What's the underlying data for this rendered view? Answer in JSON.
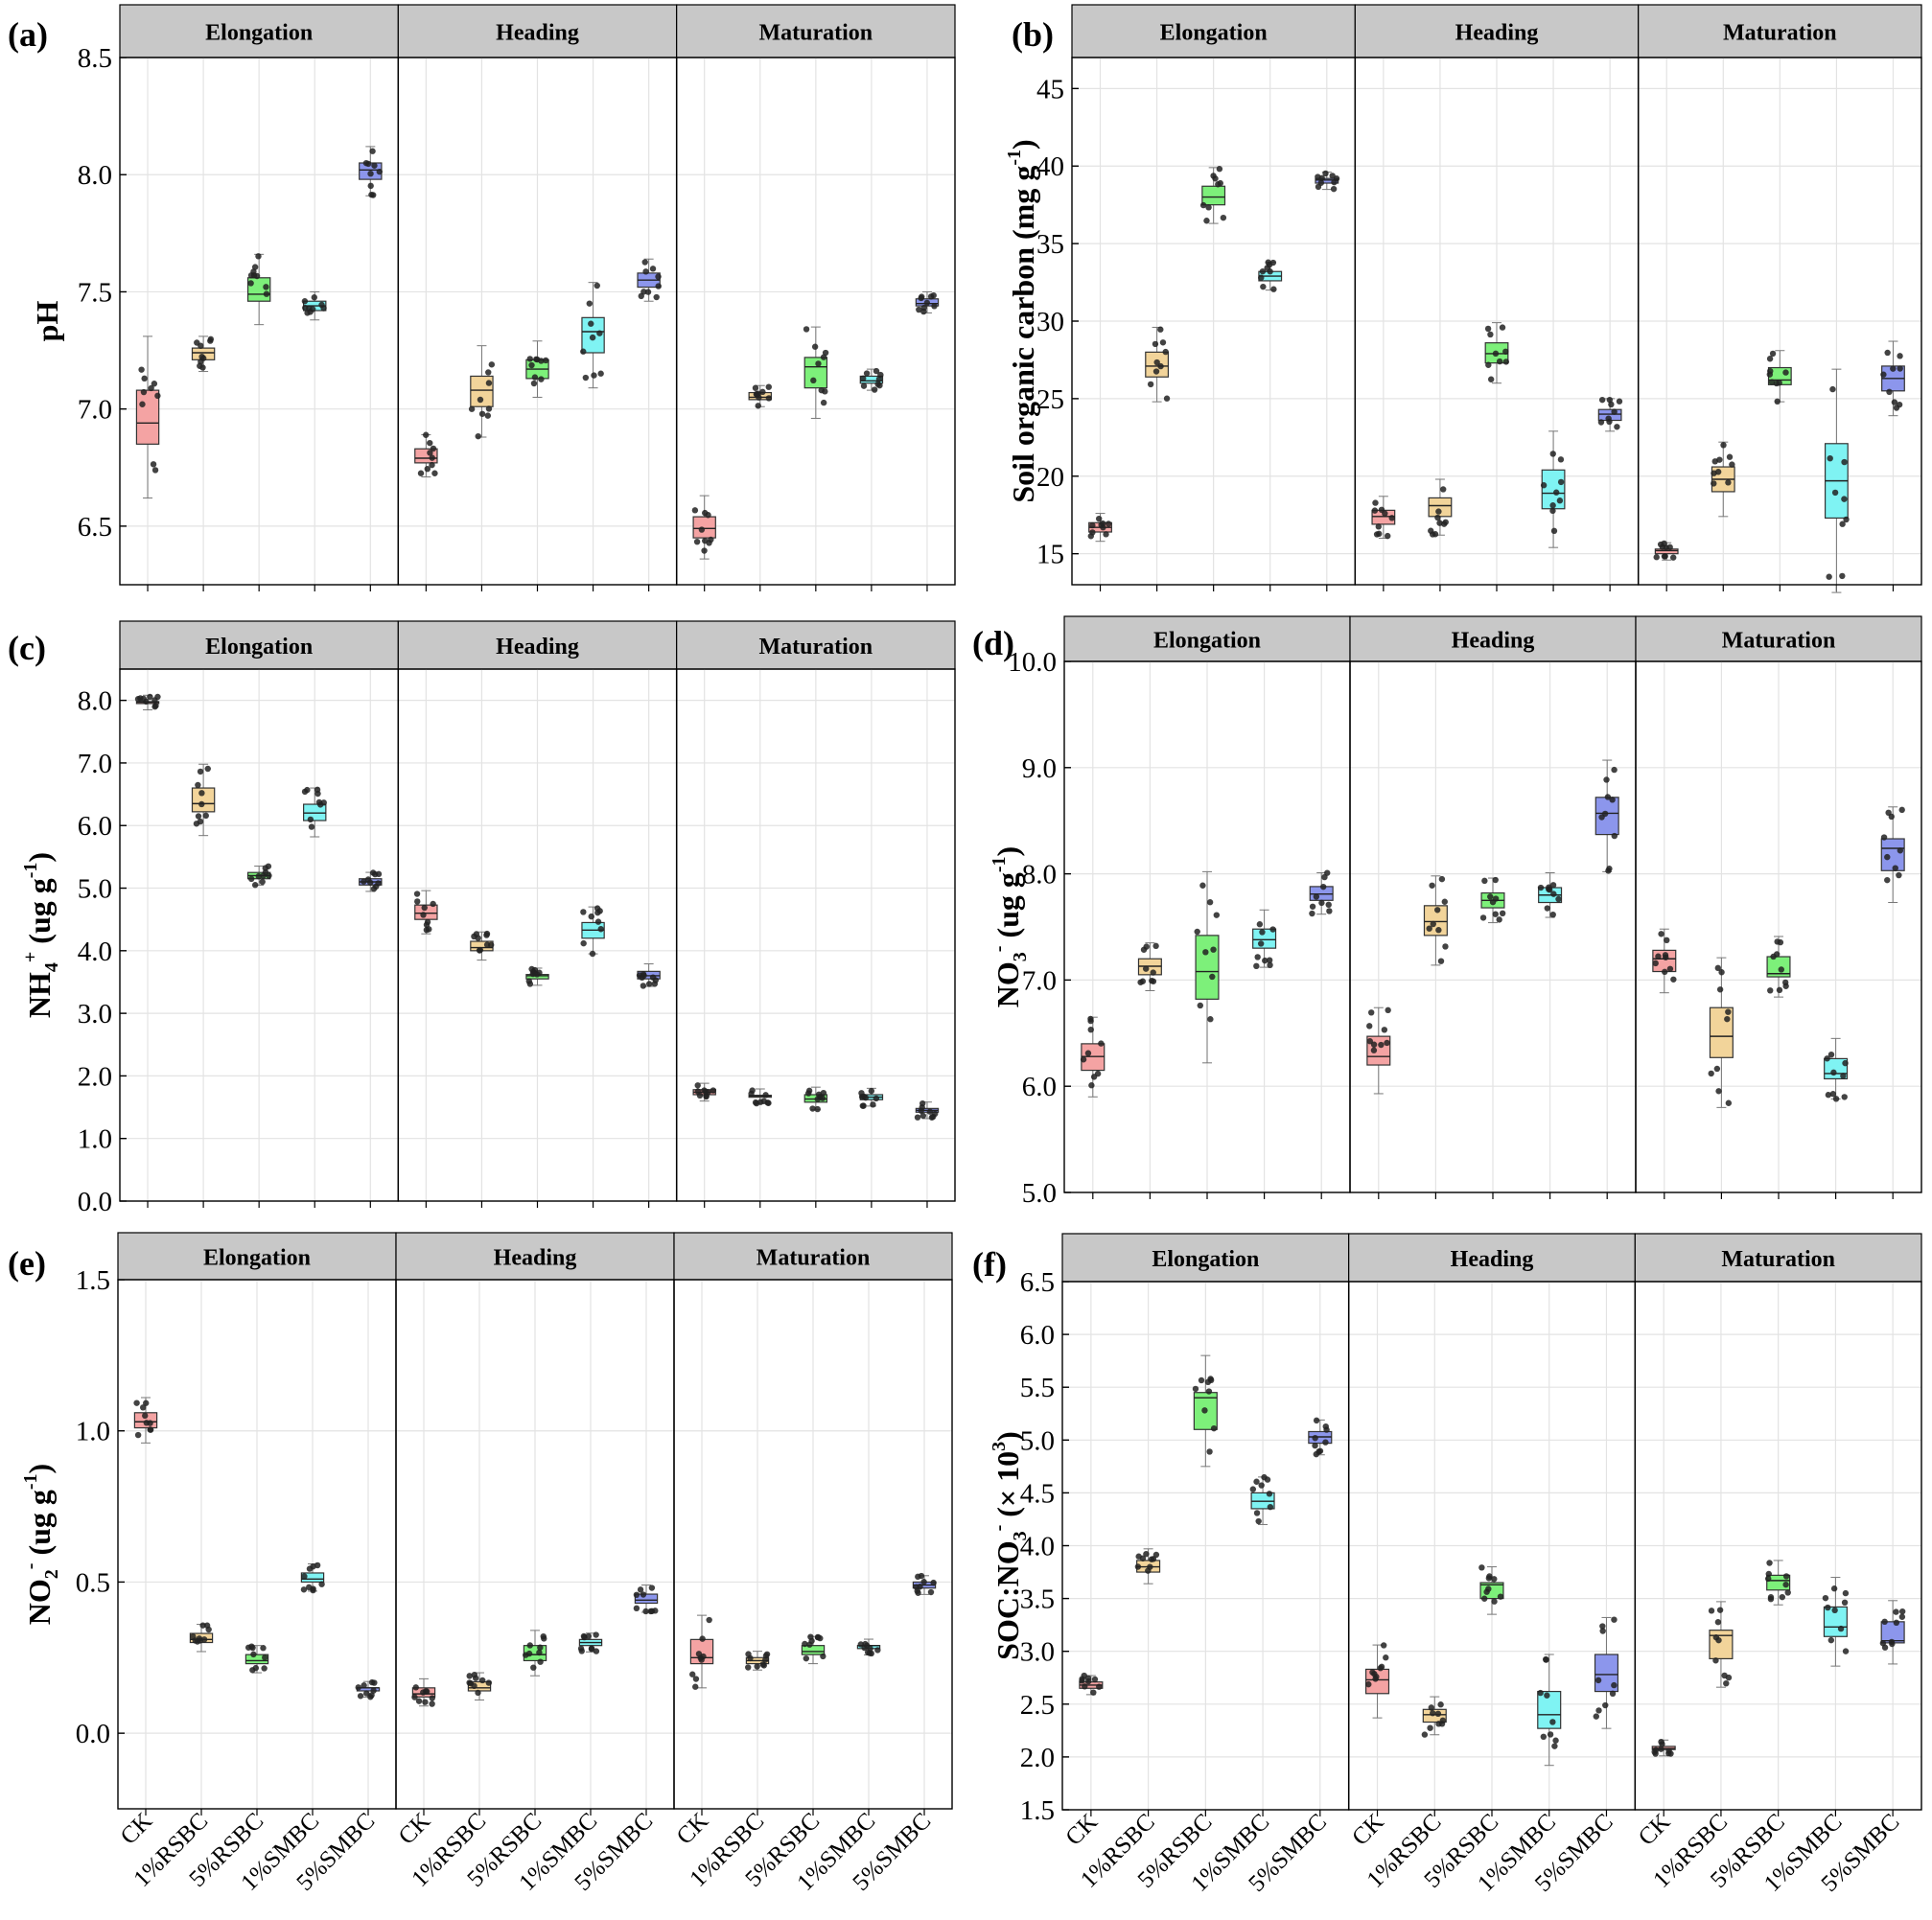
{
  "figure": {
    "treatments": [
      "CK",
      "1%RSBC",
      "5%RSBC",
      "1%SMBC",
      "5%SMBC"
    ],
    "stages": [
      "Elongation",
      "Heading",
      "Maturation"
    ],
    "colors": {
      "CK": "#f4a3a3",
      "1%RSBC": "#f2d49a",
      "5%RSBC": "#7df07a",
      "1%SMBC": "#7ff3f3",
      "5%SMBC": "#8c96ec",
      "header_bg": "#c8c8c8",
      "grid": "#e3e3e3"
    }
  },
  "chart_data": [
    {
      "id": "a",
      "type": "box",
      "panel_label": "(a)",
      "ylabel": {
        "main": "pH",
        "sup": "",
        "tail": ""
      },
      "ylim": [
        6.25,
        8.5
      ],
      "yticks": [
        "6.5",
        "7.0",
        "7.5",
        "8.0",
        "8.5"
      ],
      "series": {
        "Elongation": [
          [
            6.85,
            6.94,
            7.08
          ],
          [
            7.21,
            7.24,
            7.26
          ],
          [
            7.46,
            7.49,
            7.56
          ],
          [
            7.42,
            7.44,
            7.46
          ],
          [
            7.98,
            8.02,
            8.05
          ]
        ],
        "Heading": [
          [
            6.77,
            6.79,
            6.83
          ],
          [
            7.01,
            7.08,
            7.14
          ],
          [
            7.13,
            7.17,
            7.21
          ],
          [
            7.24,
            7.33,
            7.39
          ],
          [
            7.52,
            7.55,
            7.58
          ]
        ],
        "Maturation": [
          [
            6.45,
            6.49,
            6.54
          ],
          [
            7.04,
            7.05,
            7.07
          ],
          [
            7.09,
            7.18,
            7.22
          ],
          [
            7.11,
            7.12,
            7.14
          ],
          [
            7.44,
            7.45,
            7.47
          ]
        ]
      }
    },
    {
      "id": "b",
      "type": "box",
      "panel_label": "(b)",
      "ylabel": {
        "main": "Soil organic carbon (mg g",
        "sup": "-1",
        "tail": ")"
      },
      "ylim": [
        13,
        47
      ],
      "yticks": [
        "15",
        "20",
        "25",
        "30",
        "35",
        "40",
        "45"
      ],
      "series": {
        "Elongation": [
          [
            16.4,
            16.7,
            17.0
          ],
          [
            26.4,
            27.1,
            28.0
          ],
          [
            37.5,
            38.0,
            38.7
          ],
          [
            32.6,
            32.9,
            33.2
          ],
          [
            38.9,
            39.1,
            39.2
          ]
        ],
        "Heading": [
          [
            16.9,
            17.4,
            17.8
          ],
          [
            17.4,
            18.1,
            18.6
          ],
          [
            27.3,
            27.9,
            28.6
          ],
          [
            17.9,
            18.9,
            20.4
          ],
          [
            23.6,
            24.0,
            24.3
          ]
        ],
        "Maturation": [
          [
            15.0,
            15.2,
            15.3
          ],
          [
            19.0,
            19.8,
            20.6
          ],
          [
            25.9,
            26.2,
            27.0
          ],
          [
            17.3,
            19.7,
            22.1
          ],
          [
            25.5,
            26.3,
            27.1
          ]
        ]
      }
    },
    {
      "id": "c",
      "type": "box",
      "panel_label": "(c)",
      "ylabel": {
        "main": "NH",
        "sub": "4",
        "sup": "+",
        "tail": " (ug g",
        "sup2": "-1",
        "tail2": ")"
      },
      "ylim": [
        0,
        8.5
      ],
      "yticks": [
        "0.0",
        "1.0",
        "2.0",
        "3.0",
        "4.0",
        "5.0",
        "6.0",
        "7.0",
        "8.0"
      ],
      "series": {
        "Elongation": [
          [
            7.95,
            7.97,
            7.98
          ],
          [
            6.22,
            6.35,
            6.6
          ],
          [
            5.15,
            5.2,
            5.25
          ],
          [
            6.08,
            6.2,
            6.34
          ],
          [
            5.05,
            5.1,
            5.15
          ]
        ],
        "Heading": [
          [
            4.5,
            4.6,
            4.73
          ],
          [
            4.0,
            4.05,
            4.15
          ],
          [
            3.55,
            3.6,
            3.62
          ],
          [
            4.2,
            4.33,
            4.45
          ],
          [
            3.55,
            3.6,
            3.67
          ]
        ],
        "Maturation": [
          [
            1.7,
            1.74,
            1.78
          ],
          [
            1.66,
            1.68,
            1.69
          ],
          [
            1.58,
            1.63,
            1.7
          ],
          [
            1.62,
            1.66,
            1.7
          ],
          [
            1.42,
            1.45,
            1.48
          ]
        ]
      }
    },
    {
      "id": "d",
      "type": "box",
      "panel_label": "(d)",
      "ylabel": {
        "main": "NO",
        "sub": "3",
        "sup": "-",
        "tail": " (ug g",
        "sup2": "-1",
        "tail2": ")"
      },
      "ylim": [
        5.0,
        10.0
      ],
      "yticks": [
        "5.0",
        "6.0",
        "7.0",
        "8.0",
        "9.0",
        "10.0"
      ],
      "series": {
        "Elongation": [
          [
            6.15,
            6.28,
            6.4
          ],
          [
            7.05,
            7.13,
            7.2
          ],
          [
            6.82,
            7.08,
            7.42
          ],
          [
            7.3,
            7.38,
            7.48
          ],
          [
            7.75,
            7.81,
            7.88
          ]
        ],
        "Heading": [
          [
            6.2,
            6.28,
            6.47
          ],
          [
            7.42,
            7.55,
            7.7
          ],
          [
            7.68,
            7.75,
            7.82
          ],
          [
            7.73,
            7.8,
            7.87
          ],
          [
            8.37,
            8.57,
            8.72
          ]
        ],
        "Maturation": [
          [
            7.08,
            7.2,
            7.28
          ],
          [
            6.27,
            6.47,
            6.74
          ],
          [
            7.03,
            7.06,
            7.22
          ],
          [
            6.07,
            6.12,
            6.26
          ],
          [
            8.03,
            8.24,
            8.33
          ]
        ]
      }
    },
    {
      "id": "e",
      "type": "box",
      "panel_label": "(e)",
      "ylabel": {
        "main": "NO",
        "sub": "2",
        "sup": "-",
        "tail": " (ug g",
        "sup2": "-1",
        "tail2": ")"
      },
      "ylim": [
        -0.25,
        1.5
      ],
      "yticks": [
        "0.0",
        "0.5",
        "1.0",
        "1.5"
      ],
      "series": {
        "Elongation": [
          [
            1.01,
            1.03,
            1.06
          ],
          [
            0.3,
            0.31,
            0.33
          ],
          [
            0.23,
            0.24,
            0.26
          ],
          [
            0.5,
            0.51,
            0.53
          ],
          [
            0.14,
            0.15,
            0.15
          ]
        ],
        "Heading": [
          [
            0.12,
            0.13,
            0.15
          ],
          [
            0.14,
            0.15,
            0.17
          ],
          [
            0.24,
            0.26,
            0.29
          ],
          [
            0.29,
            0.3,
            0.31
          ],
          [
            0.43,
            0.44,
            0.46
          ]
        ],
        "Maturation": [
          [
            0.23,
            0.25,
            0.31
          ],
          [
            0.23,
            0.24,
            0.25
          ],
          [
            0.26,
            0.27,
            0.29
          ],
          [
            0.28,
            0.29,
            0.29
          ],
          [
            0.48,
            0.49,
            0.5
          ]
        ]
      }
    },
    {
      "id": "f",
      "type": "box",
      "panel_label": "(f)",
      "ylabel": {
        "main": "SOC:NO",
        "sub": "3",
        "sup": "-",
        "tail": " (× 10",
        "sup2": "3",
        "tail2": ")"
      },
      "ylim": [
        1.5,
        6.5
      ],
      "yticks": [
        "1.5",
        "2.0",
        "2.5",
        "3.0",
        "3.5",
        "4.0",
        "4.5",
        "5.0",
        "5.5",
        "6.0",
        "6.5"
      ],
      "series": {
        "Elongation": [
          [
            2.65,
            2.68,
            2.71
          ],
          [
            3.75,
            3.8,
            3.86
          ],
          [
            5.1,
            5.4,
            5.45
          ],
          [
            4.35,
            4.42,
            4.5
          ],
          [
            4.97,
            5.03,
            5.08
          ]
        ],
        "Heading": [
          [
            2.6,
            2.73,
            2.83
          ],
          [
            2.33,
            2.4,
            2.45
          ],
          [
            3.5,
            3.63,
            3.65
          ],
          [
            2.27,
            2.4,
            2.62
          ],
          [
            2.62,
            2.78,
            2.97
          ]
        ],
        "Maturation": [
          [
            2.07,
            2.08,
            2.1
          ],
          [
            2.93,
            3.15,
            3.2
          ],
          [
            3.58,
            3.67,
            3.72
          ],
          [
            3.14,
            3.23,
            3.42
          ],
          [
            3.08,
            3.1,
            3.28
          ]
        ]
      }
    }
  ]
}
